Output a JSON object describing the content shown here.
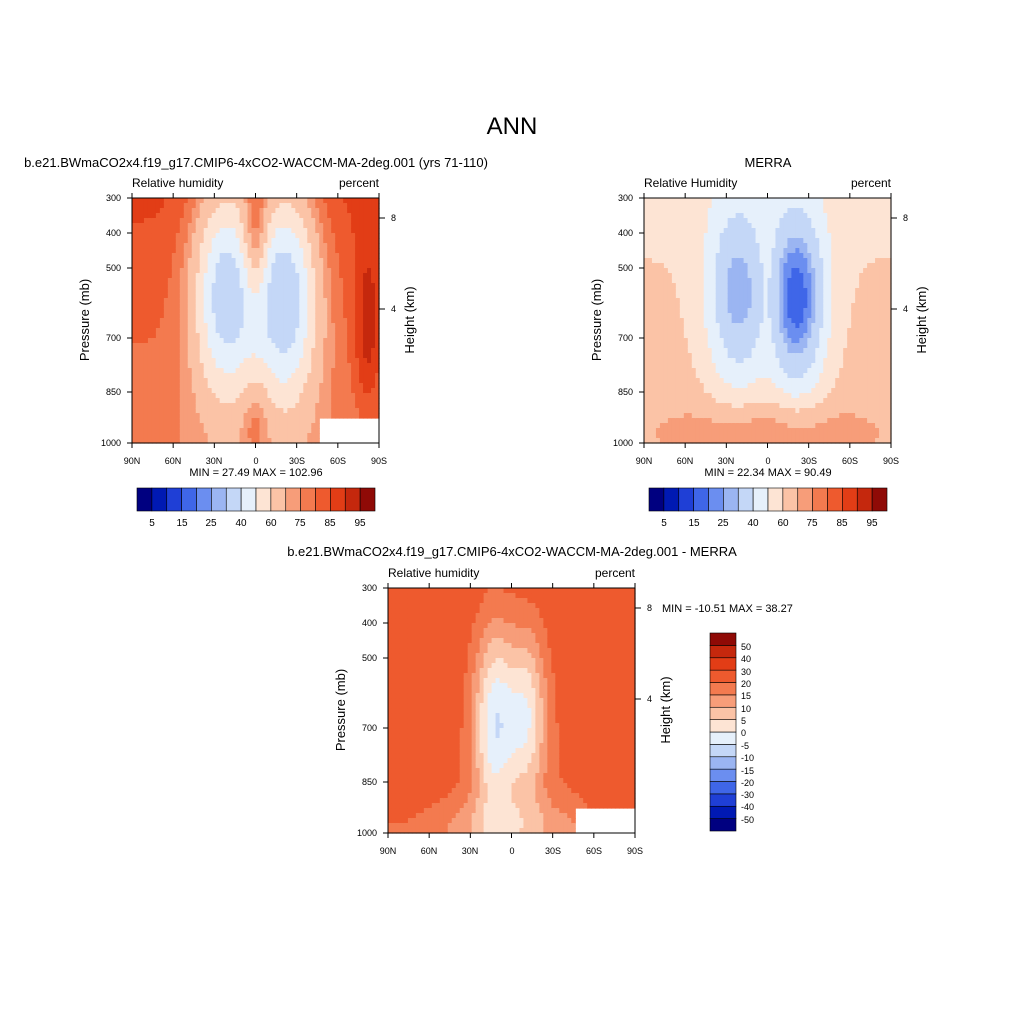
{
  "figure": {
    "title": "ANN"
  },
  "chart_data": [
    {
      "type": "heatmap",
      "title": "b.e21.BWmaCO2x4.f19_g17.CMIP6-4xCO2-WACCM-MA-2deg.001 (yrs 71-110)",
      "left_label": "Relative humidity",
      "right_label": "percent",
      "ylabel": "Pressure (mb)",
      "ylabel_right": "Height (km)",
      "x_ticks": [
        "90N",
        "60N",
        "30N",
        "0",
        "30S",
        "60S",
        "90S"
      ],
      "y_ticks": [
        "300",
        "400",
        "500",
        "700",
        "850",
        "1000"
      ],
      "y_right_ticks": [
        "8",
        "4"
      ],
      "min_max": "MIN =  27.49  MAX = 102.96",
      "colorbar_ticks": [
        "5",
        "15",
        "25",
        "40",
        "60",
        "75",
        "85",
        "95"
      ],
      "colorbar_levels": [
        5,
        10,
        15,
        20,
        25,
        30,
        40,
        50,
        60,
        70,
        75,
        80,
        85,
        90,
        95
      ],
      "min": 27.49,
      "max": 102.96
    },
    {
      "type": "heatmap",
      "title": "MERRA",
      "left_label": "Relative Humidity",
      "right_label": "percent",
      "ylabel": "Pressure (mb)",
      "ylabel_right": "Height (km)",
      "x_ticks": [
        "90N",
        "60N",
        "30N",
        "0",
        "30S",
        "60S",
        "90S"
      ],
      "y_ticks": [
        "300",
        "400",
        "500",
        "700",
        "850",
        "1000"
      ],
      "y_right_ticks": [
        "8",
        "4"
      ],
      "min_max": "MIN =  22.34  MAX =  90.49",
      "colorbar_ticks": [
        "5",
        "15",
        "25",
        "40",
        "60",
        "75",
        "85",
        "95"
      ],
      "colorbar_levels": [
        5,
        10,
        15,
        20,
        25,
        30,
        40,
        50,
        60,
        70,
        75,
        80,
        85,
        90,
        95
      ],
      "min": 22.34,
      "max": 90.49
    },
    {
      "type": "heatmap",
      "title": "b.e21.BWmaCO2x4.f19_g17.CMIP6-4xCO2-WACCM-MA-2deg.001 - MERRA",
      "left_label": "Relative humidity",
      "right_label": "percent",
      "ylabel": "Pressure (mb)",
      "ylabel_right": "Height (km)",
      "x_ticks": [
        "90N",
        "60N",
        "30N",
        "0",
        "30S",
        "60S",
        "90S"
      ],
      "y_ticks": [
        "300",
        "400",
        "500",
        "700",
        "850",
        "1000"
      ],
      "y_right_ticks": [
        "8",
        "4"
      ],
      "min_max": "MIN = -10.51  MAX =  38.27",
      "colorbar_ticks": [
        "50",
        "40",
        "30",
        "20",
        "15",
        "10",
        "5",
        "0",
        "-5",
        "-10",
        "-15",
        "-20",
        "-30",
        "-40",
        "-50"
      ],
      "colorbar_levels": [
        -50,
        -40,
        -30,
        -20,
        -15,
        -10,
        -5,
        0,
        5,
        10,
        15,
        20,
        30,
        40,
        50
      ],
      "min": -10.51,
      "max": 38.27
    }
  ],
  "colormap": [
    "#000080",
    "#0019b3",
    "#1f3fd6",
    "#3f66e8",
    "#6b8ef0",
    "#9bb5f2",
    "#c4d7f7",
    "#e6f0fb",
    "#fde4d4",
    "#fbc3a6",
    "#f79d79",
    "#f37a4f",
    "#ee5a2e",
    "#e23d16",
    "#c5280d",
    "#8f0a06"
  ]
}
